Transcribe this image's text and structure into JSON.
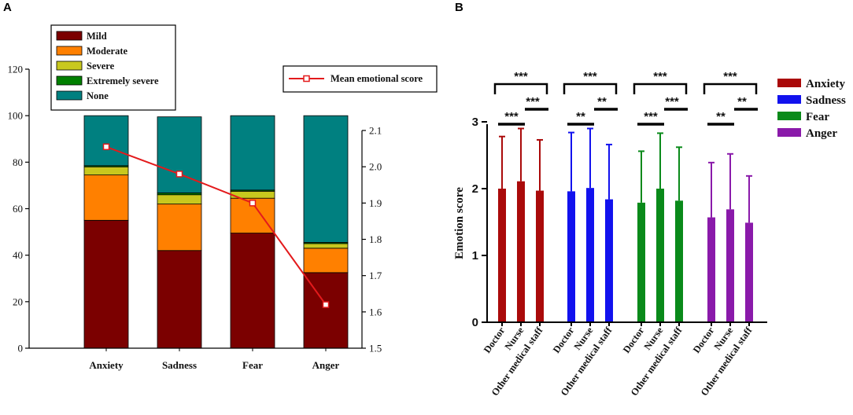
{
  "panels": {
    "a": "A",
    "b": "B"
  },
  "chart_data": [
    {
      "id": "A",
      "type": "bar",
      "stacked": true,
      "categories": [
        "Anxiety",
        "Sadness",
        "Fear",
        "Anger"
      ],
      "series": [
        {
          "name": "Mild",
          "color": "#7b0000",
          "values": [
            55,
            42,
            49.5,
            32.5
          ]
        },
        {
          "name": "Moderate",
          "color": "#ff8000",
          "values": [
            19.5,
            20,
            15,
            10.5
          ]
        },
        {
          "name": "Severe",
          "color": "#c8c81e",
          "values": [
            3.5,
            4,
            3,
            2
          ]
        },
        {
          "name": "Extremely severe",
          "color": "#008000",
          "values": [
            0.5,
            0.8,
            0.5,
            0.5
          ]
        },
        {
          "name": "None",
          "color": "#008080",
          "values": [
            21.5,
            32.7,
            32,
            54.5
          ]
        }
      ],
      "ylim": [
        0,
        120
      ],
      "yticks": [
        "0",
        "20",
        "40",
        "60",
        "80",
        "100",
        "120"
      ],
      "line_series": {
        "name": "Mean emotional score",
        "color": "#e31a1c",
        "values": [
          2.055,
          1.98,
          1.9,
          1.62
        ],
        "y2lim": [
          1.5,
          2.1
        ],
        "y2ticks": [
          "1.5",
          "1.6",
          "1.7",
          "1.8",
          "1.9",
          "2.0",
          "2.1"
        ]
      }
    },
    {
      "id": "B",
      "type": "bar",
      "ylabel": "Emotion score",
      "ylim": [
        0,
        3
      ],
      "yticks": [
        "0",
        "1",
        "2",
        "3"
      ],
      "categories": [
        "Doctor",
        "Nurse",
        "Other medical staff"
      ],
      "series": [
        {
          "name": "Anxiety",
          "color": "#aa0a0a",
          "values": [
            2.0,
            2.11,
            1.97
          ],
          "error_upper": [
            2.78,
            2.9,
            2.73
          ]
        },
        {
          "name": "Sadness",
          "color": "#1212ee",
          "values": [
            1.96,
            2.01,
            1.84
          ],
          "error_upper": [
            2.84,
            2.9,
            2.66
          ]
        },
        {
          "name": "Fear",
          "color": "#0a8a1a",
          "values": [
            1.79,
            2.0,
            1.82
          ],
          "error_upper": [
            2.56,
            2.83,
            2.62
          ]
        },
        {
          "name": "Anger",
          "color": "#8a1aaa",
          "values": [
            1.57,
            1.69,
            1.49
          ],
          "error_upper": [
            2.39,
            2.52,
            2.19
          ]
        }
      ],
      "significance": [
        {
          "long": "***",
          "pair1": "***",
          "pair2": "***"
        },
        {
          "long": "***",
          "pair1": "**",
          "pair2": "**"
        },
        {
          "long": "***",
          "pair1": "***",
          "pair2": "***"
        },
        {
          "long": "***",
          "pair1": "**",
          "pair2": "**"
        }
      ]
    }
  ]
}
